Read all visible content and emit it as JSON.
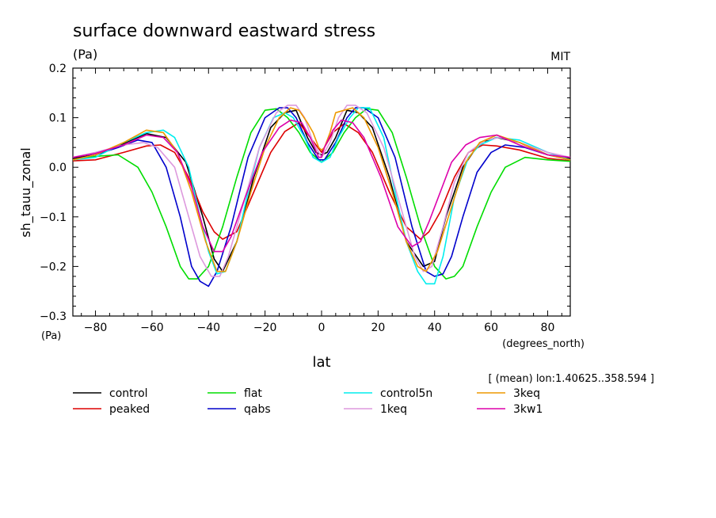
{
  "chart_data": {
    "type": "line",
    "title": "surface downward eastward stress",
    "units_top": "(Pa)",
    "units_bottom": "(Pa)",
    "source": "MIT",
    "ylabel": "sh_tauu_zonal",
    "xlabel": "lat",
    "xunits": "(degrees_north)",
    "note": "[ (mean) lon:1.40625..358.594 ]",
    "xlim": [
      -88,
      88
    ],
    "ylim": [
      -0.3,
      0.2
    ],
    "xticks": [
      -80,
      -60,
      -40,
      -20,
      0,
      20,
      40,
      60,
      80
    ],
    "xtick_labels": [
      "−80",
      "−60",
      "−40",
      "−20",
      "0",
      "20",
      "40",
      "60",
      "80"
    ],
    "yticks": [
      -0.3,
      -0.2,
      -0.1,
      0.0,
      0.1,
      0.2
    ],
    "ytick_labels": [
      "−0.3",
      "−0.2",
      "−0.1",
      "0.0",
      "0.1",
      "0.2"
    ],
    "grid": false,
    "legend_position": "below",
    "series": [
      {
        "name": "control",
        "color": "#000000",
        "x": [
          -88,
          -80,
          -70,
          -62,
          -55,
          -48,
          -42,
          -38,
          -35,
          -30,
          -24,
          -18,
          -13,
          -9,
          -5,
          -2,
          0,
          2,
          5,
          9,
          13,
          18,
          24,
          30,
          36,
          40,
          44,
          50,
          56,
          62,
          70,
          80,
          88
        ],
        "y": [
          0.018,
          0.025,
          0.048,
          0.068,
          0.06,
          0.01,
          -0.1,
          -0.185,
          -0.21,
          -0.15,
          -0.02,
          0.08,
          0.11,
          0.115,
          0.06,
          0.03,
          0.025,
          0.03,
          0.06,
          0.115,
          0.11,
          0.08,
          -0.02,
          -0.15,
          -0.2,
          -0.19,
          -0.1,
          0.0,
          0.05,
          0.06,
          0.05,
          0.025,
          0.018
        ]
      },
      {
        "name": "peaked",
        "color": "#dd0000",
        "x": [
          -88,
          -80,
          -70,
          -62,
          -57,
          -52,
          -47,
          -42,
          -38,
          -35,
          -30,
          -24,
          -18,
          -13,
          -8,
          -4,
          0,
          4,
          8,
          13,
          18,
          24,
          30,
          35,
          38,
          42,
          47,
          52,
          57,
          62,
          70,
          80,
          88
        ],
        "y": [
          0.013,
          0.015,
          0.03,
          0.043,
          0.045,
          0.03,
          -0.02,
          -0.09,
          -0.13,
          -0.145,
          -0.13,
          -0.05,
          0.03,
          0.072,
          0.09,
          0.06,
          0.03,
          0.07,
          0.088,
          0.07,
          0.03,
          -0.05,
          -0.12,
          -0.145,
          -0.13,
          -0.09,
          -0.02,
          0.03,
          0.045,
          0.043,
          0.035,
          0.018,
          0.013
        ]
      },
      {
        "name": "flat",
        "color": "#00dd00",
        "x": [
          -88,
          -80,
          -72,
          -65,
          -60,
          -55,
          -50,
          -47,
          -44,
          -40,
          -35,
          -30,
          -25,
          -20,
          -16,
          -12,
          -8,
          -4,
          0,
          4,
          8,
          12,
          16,
          20,
          25,
          30,
          35,
          40,
          44,
          47,
          50,
          55,
          60,
          65,
          72,
          80,
          88
        ],
        "y": [
          0.015,
          0.022,
          0.025,
          0.0,
          -0.05,
          -0.12,
          -0.2,
          -0.225,
          -0.225,
          -0.2,
          -0.12,
          -0.02,
          0.07,
          0.115,
          0.118,
          0.1,
          0.07,
          0.03,
          0.01,
          0.03,
          0.07,
          0.1,
          0.118,
          0.115,
          0.07,
          -0.02,
          -0.12,
          -0.2,
          -0.225,
          -0.22,
          -0.2,
          -0.12,
          -0.05,
          0.0,
          0.02,
          0.015,
          0.012
        ]
      },
      {
        "name": "qabs",
        "color": "#0000cc",
        "x": [
          -88,
          -80,
          -72,
          -65,
          -60,
          -55,
          -50,
          -46,
          -43,
          -40,
          -37,
          -32,
          -26,
          -20,
          -15,
          -12,
          -9,
          -5,
          -1,
          0,
          1,
          5,
          9,
          12,
          15,
          20,
          26,
          32,
          37,
          40,
          43,
          46,
          50,
          55,
          60,
          65,
          72,
          80,
          88
        ],
        "y": [
          0.015,
          0.025,
          0.04,
          0.055,
          0.05,
          0.0,
          -0.1,
          -0.2,
          -0.23,
          -0.24,
          -0.21,
          -0.12,
          0.02,
          0.1,
          0.12,
          0.12,
          0.1,
          0.05,
          0.015,
          0.015,
          0.015,
          0.05,
          0.1,
          0.12,
          0.12,
          0.1,
          0.02,
          -0.12,
          -0.21,
          -0.22,
          -0.215,
          -0.18,
          -0.1,
          -0.01,
          0.03,
          0.045,
          0.04,
          0.025,
          0.015
        ]
      },
      {
        "name": "control5n",
        "color": "#00eeee",
        "x": [
          -88,
          -80,
          -70,
          -62,
          -56,
          -52,
          -47,
          -43,
          -40,
          -37,
          -34,
          -30,
          -26,
          -22,
          -17,
          -13,
          -10,
          -6,
          -3,
          0,
          3,
          6,
          10,
          13,
          17,
          22,
          26,
          30,
          34,
          37,
          40,
          43,
          47,
          52,
          56,
          62,
          70,
          80,
          88
        ],
        "y": [
          0.015,
          0.02,
          0.05,
          0.07,
          0.075,
          0.06,
          0.0,
          -0.1,
          -0.17,
          -0.215,
          -0.21,
          -0.15,
          -0.05,
          0.04,
          0.1,
          0.11,
          0.1,
          0.06,
          0.02,
          0.01,
          0.02,
          0.06,
          0.1,
          0.12,
          0.12,
          0.06,
          -0.05,
          -0.15,
          -0.21,
          -0.235,
          -0.235,
          -0.18,
          -0.06,
          0.02,
          0.045,
          0.06,
          0.055,
          0.03,
          0.015
        ]
      },
      {
        "name": "1keq",
        "color": "#dd99dd",
        "x": [
          -88,
          -80,
          -70,
          -63,
          -58,
          -52,
          -47,
          -43,
          -39,
          -36,
          -33,
          -28,
          -22,
          -16,
          -12,
          -9,
          -6,
          -3,
          0,
          3,
          6,
          9,
          12,
          16,
          22,
          28,
          33,
          36,
          39,
          43,
          47,
          52,
          58,
          63,
          70,
          80,
          88
        ],
        "y": [
          0.02,
          0.03,
          0.045,
          0.05,
          0.04,
          0.0,
          -0.1,
          -0.18,
          -0.22,
          -0.22,
          -0.18,
          -0.08,
          0.04,
          0.11,
          0.125,
          0.125,
          0.1,
          0.05,
          0.02,
          0.05,
          0.1,
          0.125,
          0.125,
          0.11,
          0.04,
          -0.08,
          -0.18,
          -0.21,
          -0.2,
          -0.12,
          -0.03,
          0.03,
          0.055,
          0.06,
          0.05,
          0.03,
          0.02
        ]
      },
      {
        "name": "3keq",
        "color": "#ee9900",
        "x": [
          -88,
          -80,
          -70,
          -62,
          -56,
          -51,
          -46,
          -41,
          -37,
          -34,
          -30,
          -25,
          -20,
          -15,
          -11,
          -8,
          -5,
          -3,
          -1,
          0,
          1,
          3,
          5,
          8,
          11,
          15,
          20,
          25,
          30,
          34,
          37,
          41,
          46,
          51,
          56,
          62,
          70,
          80,
          88
        ],
        "y": [
          0.015,
          0.025,
          0.05,
          0.075,
          0.07,
          0.03,
          -0.05,
          -0.15,
          -0.21,
          -0.21,
          -0.15,
          -0.05,
          0.04,
          0.1,
          0.12,
          0.115,
          0.09,
          0.07,
          0.04,
          0.035,
          0.04,
          0.07,
          0.11,
          0.115,
          0.12,
          0.1,
          0.04,
          -0.05,
          -0.15,
          -0.2,
          -0.21,
          -0.17,
          -0.08,
          0.01,
          0.05,
          0.065,
          0.05,
          0.025,
          0.015
        ]
      },
      {
        "name": "3kw1",
        "color": "#dd00aa",
        "x": [
          -88,
          -80,
          -70,
          -62,
          -56,
          -51,
          -46,
          -42,
          -38,
          -35,
          -32,
          -27,
          -21,
          -15,
          -11,
          -7,
          -4,
          -1,
          0,
          1,
          4,
          7,
          11,
          15,
          21,
          27,
          32,
          35,
          38,
          42,
          46,
          51,
          56,
          62,
          70,
          80,
          88
        ],
        "y": [
          0.02,
          0.028,
          0.045,
          0.065,
          0.06,
          0.03,
          -0.04,
          -0.12,
          -0.17,
          -0.17,
          -0.14,
          -0.06,
          0.03,
          0.08,
          0.095,
          0.09,
          0.06,
          0.02,
          0.02,
          0.04,
          0.075,
          0.095,
          0.09,
          0.06,
          -0.02,
          -0.12,
          -0.16,
          -0.15,
          -0.11,
          -0.05,
          0.01,
          0.045,
          0.06,
          0.065,
          0.045,
          0.025,
          0.02
        ]
      }
    ]
  }
}
